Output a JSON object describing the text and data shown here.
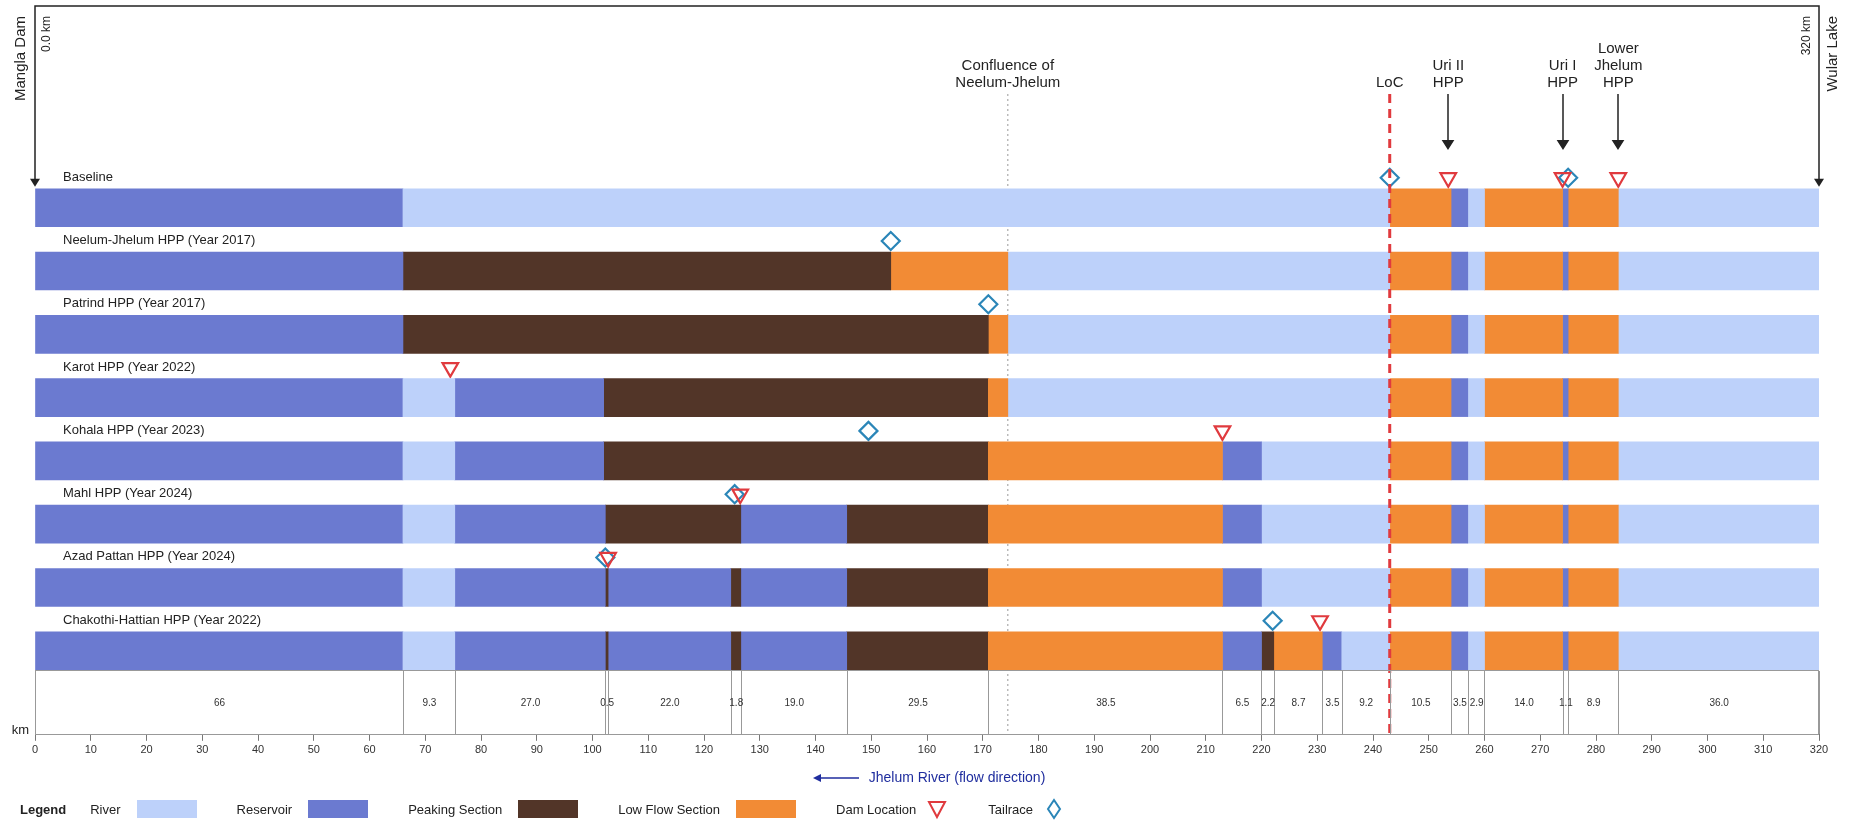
{
  "chart_data": {
    "type": "bar",
    "orientation": "horizontal",
    "xlabel": "km",
    "legend_title": "Legend",
    "legend": "bottom",
    "categories": [
      "Baseline",
      "Neelum-Jhelum HPP (Year 2017)",
      "Patrind HPP (Year 2017)",
      "Karot HPP (Year 2022)",
      "Kohala HPP (Year 2023)",
      "Mahl HPP (Year 2024)",
      "Azad Pattan HPP (Year 2024)",
      "Chakothi-Hattian HPP (Year 2022)"
    ],
    "xlim": [
      0,
      320
    ],
    "xticks": [
      0,
      10,
      20,
      30,
      40,
      50,
      60,
      70,
      80,
      90,
      100,
      110,
      120,
      130,
      140,
      150,
      160,
      170,
      180,
      190,
      200,
      210,
      220,
      230,
      240,
      250,
      260,
      270,
      280,
      290,
      300,
      310,
      320
    ],
    "series": [
      {
        "name": "River",
        "color": "#bdd1fa",
        "base": [
          66,
          null,
          null,
          66,
          66,
          66,
          66,
          66
        ],
        "values": [
          177,
          null,
          null,
          9.3,
          9.3,
          9.3,
          9.3,
          9.3
        ]
      },
      {
        "name": "Reservoir",
        "color": "#6b7ad0",
        "base": [
          0,
          0,
          0,
          0,
          0,
          0,
          0,
          0
        ],
        "values": [
          66,
          66,
          66,
          66,
          66,
          66,
          66,
          66
        ]
      },
      {
        "name": "Peaking Section",
        "color": "#523528",
        "base": [
          null,
          66,
          66,
          null,
          null,
          null,
          null,
          null
        ],
        "values": [
          null,
          87.5,
          105,
          null,
          null,
          null,
          null,
          null
        ]
      },
      {
        "name": "Low Flow Section",
        "color": "#f28b35",
        "base": [
          null,
          153.5,
          171,
          171,
          171,
          171,
          171,
          171
        ],
        "values": [
          null,
          21,
          3.5,
          3.5,
          42,
          42,
          42,
          42
        ]
      },
      {
        "color": "#6b7ad0",
        "base": [
          null,
          null,
          null,
          75.3,
          75.3,
          75.3,
          75.3,
          75.3
        ],
        "values": [
          null,
          null,
          null,
          26.7,
          26.7,
          27,
          27,
          27
        ]
      },
      {
        "color": "#523528",
        "base": [
          null,
          null,
          null,
          102,
          102,
          102.3,
          102.3,
          102.3
        ],
        "values": [
          null,
          null,
          null,
          69,
          69,
          24.3,
          0.5,
          0.5
        ]
      },
      {
        "color": "#6b7ad0",
        "base": [
          null,
          null,
          null,
          null,
          null,
          null,
          102.8,
          102.8
        ],
        "values": [
          null,
          null,
          null,
          null,
          null,
          null,
          22,
          22
        ]
      },
      {
        "color": "#523528",
        "base": [
          null,
          null,
          null,
          null,
          null,
          null,
          124.8,
          124.8
        ],
        "values": [
          null,
          null,
          null,
          null,
          null,
          null,
          1.8,
          1.8
        ]
      },
      {
        "color": "#6b7ad0",
        "base": [
          null,
          null,
          null,
          null,
          null,
          126.6,
          126.6,
          126.6
        ],
        "values": [
          null,
          null,
          null,
          null,
          null,
          19,
          19,
          19
        ]
      },
      {
        "color": "#523528",
        "base": [
          null,
          null,
          null,
          null,
          null,
          145.6,
          145.6,
          145.6
        ],
        "values": [
          null,
          null,
          null,
          null,
          null,
          25.4,
          25.4,
          25.4
        ]
      },
      {
        "color": "#bdd1fa",
        "base": [
          null,
          174.5,
          174.5,
          174.5,
          null,
          null,
          null,
          null
        ],
        "values": [
          null,
          68.5,
          68.5,
          68.5,
          null,
          null,
          null,
          null
        ]
      },
      {
        "color": "#6b7ad0",
        "base": [
          null,
          null,
          null,
          null,
          213,
          213,
          213,
          213
        ],
        "values": [
          null,
          null,
          null,
          null,
          7,
          7,
          7,
          7
        ]
      },
      {
        "color": "#bdd1fa",
        "base": [
          null,
          null,
          null,
          null,
          220,
          220,
          220,
          234.4
        ],
        "values": [
          null,
          null,
          null,
          null,
          23,
          23,
          23,
          8.6
        ]
      },
      {
        "color": "#523528",
        "base": [
          null,
          null,
          null,
          null,
          null,
          null,
          null,
          220
        ],
        "values": [
          null,
          null,
          null,
          null,
          null,
          null,
          null,
          2.2
        ]
      },
      {
        "color": "#f28b35",
        "base": [
          null,
          null,
          null,
          null,
          null,
          null,
          null,
          222.2
        ],
        "values": [
          null,
          null,
          null,
          null,
          null,
          null,
          null,
          8.7
        ]
      },
      {
        "color": "#6b7ad0",
        "base": [
          null,
          null,
          null,
          null,
          null,
          null,
          null,
          230.9
        ],
        "values": [
          null,
          null,
          null,
          null,
          null,
          null,
          null,
          3.5
        ]
      },
      {
        "color": "#f28b35",
        "base": [
          243,
          243,
          243,
          243,
          243,
          243,
          243,
          243
        ],
        "values": [
          11,
          11,
          11,
          11,
          11,
          11,
          11,
          11
        ]
      },
      {
        "color": "#6b7ad0",
        "base": [
          254,
          254,
          254,
          254,
          254,
          254,
          254,
          254
        ],
        "values": [
          3,
          3,
          3,
          3,
          3,
          3,
          3,
          3
        ]
      },
      {
        "color": "#bdd1fa",
        "base": [
          257,
          257,
          257,
          257,
          257,
          257,
          257,
          257
        ],
        "values": [
          3,
          3,
          3,
          3,
          3,
          3,
          3,
          3
        ]
      },
      {
        "color": "#f28b35",
        "base": [
          260,
          260,
          260,
          260,
          260,
          260,
          260,
          260
        ],
        "values": [
          14,
          14,
          14,
          14,
          14,
          14,
          14,
          14
        ]
      },
      {
        "color": "#6b7ad0",
        "base": [
          274,
          274,
          274,
          274,
          274,
          274,
          274,
          274
        ],
        "values": [
          1,
          1,
          1,
          1,
          1,
          1,
          1,
          1
        ]
      },
      {
        "color": "#f28b35",
        "base": [
          275,
          275,
          275,
          275,
          275,
          275,
          275,
          275
        ],
        "values": [
          9,
          9,
          9,
          9,
          9,
          9,
          9,
          9
        ]
      },
      {
        "color": "#bdd1fa",
        "base": [
          284,
          284,
          284,
          284,
          284,
          284,
          284,
          284
        ],
        "values": [
          36,
          36,
          36,
          36,
          36,
          36,
          36,
          36
        ]
      },
      {
        "type": "scatter",
        "name": "Dam Location",
        "color": "#e03a3e",
        "marker": "triangle",
        "values": [
          253.5,
          null,
          null,
          74.5,
          213,
          126.5,
          102.8,
          230.5
        ]
      },
      {
        "type": "scatter",
        "color": "#e03a3e",
        "marker": "triangle",
        "values": [
          274,
          null,
          null,
          null,
          null,
          null,
          null,
          null
        ]
      },
      {
        "type": "scatter",
        "color": "#e03a3e",
        "marker": "triangle",
        "values": [
          284,
          null,
          null,
          null,
          null,
          null,
          null,
          null
        ]
      },
      {
        "type": "scatter",
        "name": "Tailrace",
        "color": "#2b86b8",
        "marker": "diamond",
        "values": [
          243,
          153.5,
          171,
          null,
          149.5,
          125.5,
          102.3,
          222
        ]
      },
      {
        "type": "scatter",
        "color": "#2b86b8",
        "marker": "diamond",
        "values": [
          275,
          null,
          null,
          null,
          null,
          null,
          null,
          null
        ]
      }
    ],
    "ref_lines": [
      {
        "axis": "x",
        "value": 174.5,
        "label": "Confluence of Neelum-Jhelum",
        "color": "#999999",
        "line_style": "dotted"
      },
      {
        "axis": "x",
        "value": 243,
        "label": "LoC",
        "color": "#e03a3e",
        "line_style": "dashed"
      }
    ],
    "annotations": [
      "Mangla Dam",
      "0.0 km",
      "Wular Lake",
      "320 km",
      "Uri II HPP",
      "Uri I HPP",
      "Lower Jhelum HPP",
      "66",
      "9.3",
      "27.0",
      "0.5",
      "22.0",
      "1.8",
      "19.0",
      "29.5",
      "38.5",
      "6.5",
      "2.2",
      "8.7",
      "3.5",
      "9.2",
      "10.5",
      "3.5",
      "2.9",
      "14.0",
      "1.1",
      "8.9",
      "36.0",
      "Jhelum River (flow direction)"
    ]
  }
}
